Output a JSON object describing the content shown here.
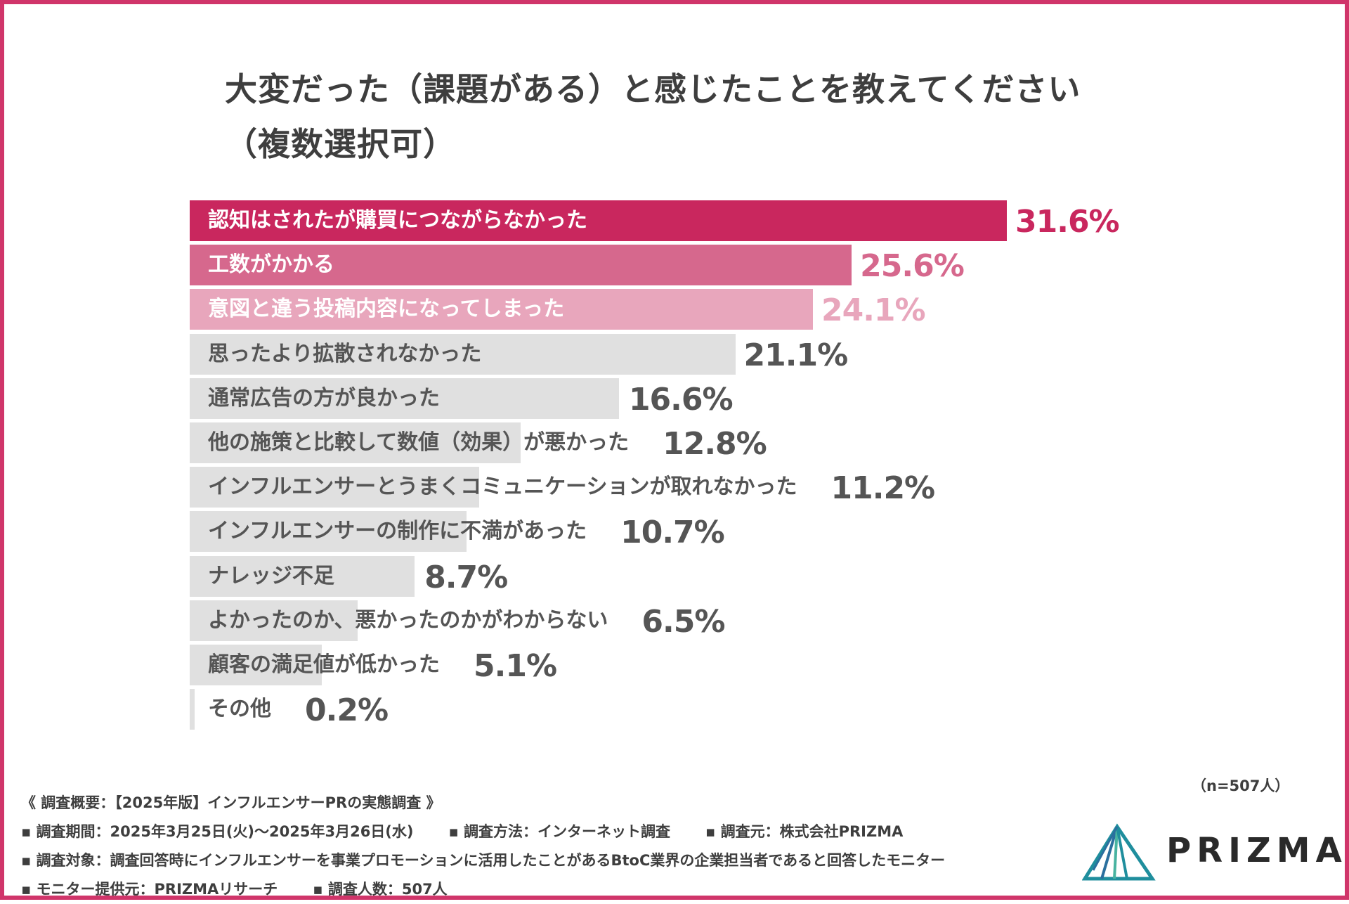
{
  "chart_data": {
    "type": "bar",
    "orientation": "horizontal",
    "title_line1": "大変だった（課題がある）と感じたことを教えてください",
    "title_line2": "（複数選択可）",
    "categories": [
      "認知はされたが購買につながらなかった",
      "工数がかかる",
      "意図と違う投稿内容になってしまった",
      "思ったより拡散されなかった",
      "通常広告の方が良かった",
      "他の施策と比較して数値（効果）が悪かった",
      "インフルエンサーとうまくコミュニケーションが取れなかった",
      "インフルエンサーの制作に不満があった",
      "ナレッジ不足",
      "よかったのか、悪かったのかがわからない",
      "顧客の満足値が低かった",
      "その他"
    ],
    "values": [
      31.6,
      25.6,
      24.1,
      21.1,
      16.6,
      12.8,
      11.2,
      10.7,
      8.7,
      6.5,
      5.1,
      0.2
    ],
    "value_labels": [
      "31.6%",
      "25.6%",
      "24.1%",
      "21.1%",
      "16.6%",
      "12.8%",
      "11.2%",
      "10.7%",
      "8.7%",
      "6.5%",
      "5.1%",
      "0.2%"
    ],
    "unit": "%",
    "xlim": [
      0,
      31.6
    ],
    "bar_colors": [
      "#c9275e",
      "#d6688d",
      "#e8a6bc",
      "#e0e0e0",
      "#e0e0e0",
      "#e0e0e0",
      "#e0e0e0",
      "#e0e0e0",
      "#e0e0e0",
      "#e0e0e0",
      "#e0e0e0",
      "#e0e0e0"
    ],
    "label_colors": [
      "#ffffff",
      "#ffffff",
      "#ffffff",
      "#555555",
      "#555555",
      "#555555",
      "#555555",
      "#555555",
      "#555555",
      "#555555",
      "#555555",
      "#555555"
    ],
    "value_colors": [
      "#c9275e",
      "#d6688d",
      "#e8a6bc",
      "#555555",
      "#555555",
      "#555555",
      "#555555",
      "#555555",
      "#555555",
      "#555555",
      "#555555",
      "#555555"
    ],
    "sample_size": "（n=507人）"
  },
  "footer": {
    "line1": "《 調査概要：【2025年版】インフルエンサーPRの実態調査 》",
    "period": "▪ 調査期間：2025年3月25日(火)〜2025年3月26日(水)",
    "method": "▪ 調査方法：インターネット調査",
    "source": "▪ 調査元：株式会社PRIZMA",
    "target": "▪ 調査対象：調査回答時にインフルエンサーを事業プロモーションに活用したことがあるBtoC業界の企業担当者であると回答したモニター",
    "provider": "▪ モニター提供元：PRIZMAリサーチ",
    "count": "▪ 調査人数：507人"
  },
  "logo": {
    "text": "PRIZMA",
    "colors": [
      "#1f8e9d",
      "#2a6f9e",
      "#48b3a0"
    ]
  },
  "frame_color": "#d0356a"
}
